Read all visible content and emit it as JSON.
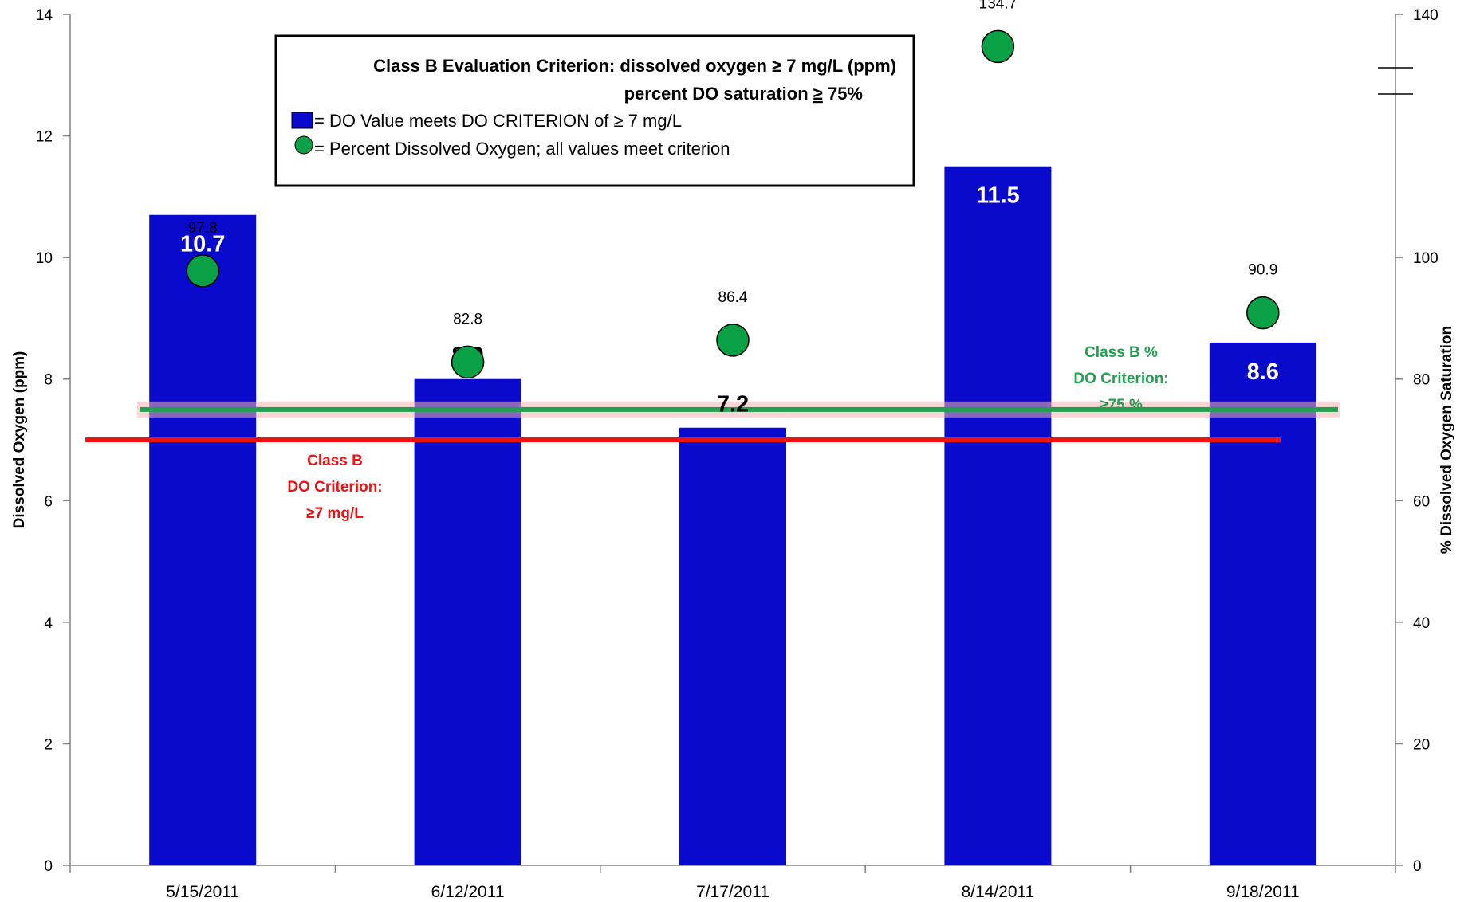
{
  "chart_data": {
    "type": "bar",
    "categories": [
      "5/15/2011",
      "6/12/2011",
      "7/17/2011",
      "8/14/2011",
      "9/18/2011"
    ],
    "series": [
      {
        "name": "DO Value meets DO CRITERION of ≥ 7 mg/L",
        "type": "bar",
        "axis": "left",
        "color": "#0A0ACC",
        "values": [
          10.7,
          8.0,
          7.2,
          11.5,
          8.6
        ],
        "labels": [
          "10.7",
          "8.0",
          "7.2",
          "11.5",
          "8.6"
        ]
      },
      {
        "name": "Percent Dissolved Oxygen; all values meet criterion",
        "type": "scatter",
        "axis": "right",
        "color": "#0AA046",
        "values": [
          97.8,
          82.8,
          86.4,
          134.7,
          90.9
        ],
        "labels": [
          "97.8",
          "82.8",
          "86.4",
          "134.7",
          "90.9"
        ]
      }
    ],
    "ylabel": "Dissolved Oxygen (ppm)",
    "y2label": "% Dissolved Oxygen Saturation",
    "ylim": [
      0,
      14
    ],
    "y2lim": [
      0,
      140
    ],
    "yticks": [
      "0",
      "2",
      "4",
      "6",
      "8",
      "10",
      "12",
      "14"
    ],
    "y2ticks": [
      "0",
      "20",
      "40",
      "60",
      "80",
      "100",
      "140"
    ],
    "y2_axis_break": true,
    "grid": false,
    "reference_lines": [
      {
        "axis": "left",
        "value": 7,
        "color": "#EE1111",
        "label_lines": [
          "Class B",
          "DO Criterion:",
          "≥7 mg/L"
        ]
      },
      {
        "axis": "right",
        "value": 75,
        "color": "#22A050",
        "label_lines": [
          "Class B %",
          "DO Criterion:",
          "≥75 %"
        ]
      }
    ],
    "legend": {
      "placement": "top-center",
      "title_lines": [
        "Class B Evaluation Criterion: dissolved oxygen ≥ 7 mg/L (ppm)",
        "percent DO saturation "
      ],
      "title_underlined": "≥",
      "title_tail": " 75%",
      "items": [
        "= DO Value meets DO CRITERION of ≥ 7 mg/L",
        "= Percent Dissolved Oxygen; all values meet criterion"
      ]
    }
  }
}
